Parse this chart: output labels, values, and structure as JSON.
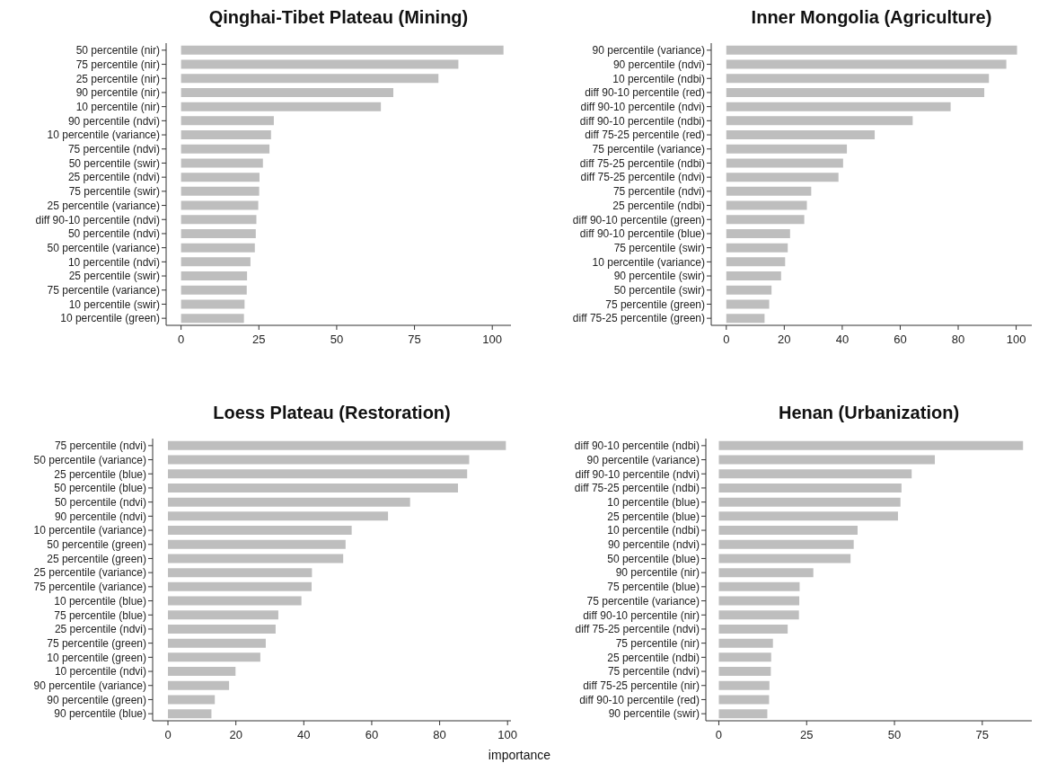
{
  "chart_data": [
    {
      "type": "bar",
      "orientation": "horizontal",
      "title": "Qinghai-Tibet Plateau (Mining)",
      "color": "#bebebe",
      "xlim": [
        -4.8,
        106
      ],
      "xticks": [
        0,
        25,
        50,
        75,
        100
      ],
      "categories": [
        "50 percentile (nir)",
        "75 percentile (nir)",
        "25 percentile (nir)",
        "90 percentile (nir)",
        "10 percentile (nir)",
        "90 percentile (ndvi)",
        "10 percentile (variance)",
        "75 percentile (ndvi)",
        "50 percentile (swir)",
        "25 percentile (ndvi)",
        "75 percentile (swir)",
        "25 percentile (variance)",
        "diff 90-10 percentile (ndvi)",
        "50 percentile (ndvi)",
        "50 percentile (variance)",
        "10 percentile (ndvi)",
        "25 percentile (swir)",
        "75 percentile (variance)",
        "10 percentile (swir)",
        "10 percentile (green)"
      ],
      "values": [
        103.6,
        89.1,
        82.7,
        68.2,
        64.2,
        29.8,
        28.9,
        28.4,
        26.3,
        25.2,
        25.1,
        24.8,
        24.2,
        24.0,
        23.7,
        22.3,
        21.2,
        21.1,
        20.4,
        20.2
      ]
    },
    {
      "type": "bar",
      "orientation": "horizontal",
      "title": "Inner Mongolia (Agriculture)",
      "color": "#bebebe",
      "xlim": [
        -5.2,
        105.4
      ],
      "xticks": [
        0,
        20,
        40,
        60,
        80,
        100
      ],
      "categories": [
        "90 percentile (variance)",
        "90 percentile (ndvi)",
        "10 percentile (ndbi)",
        "diff 90-10 percentile (red)",
        "diff 90-10 percentile (ndvi)",
        "diff 90-10 percentile (ndbi)",
        "diff 75-25 percentile (red)",
        "75 percentile (variance)",
        "diff 75-25 percentile (ndbi)",
        "diff 75-25 percentile (ndvi)",
        "75 percentile (ndvi)",
        "25 percentile (ndbi)",
        "diff 90-10 percentile (green)",
        "diff 90-10 percentile (blue)",
        "75 percentile (swir)",
        "10 percentile (variance)",
        "90 percentile (swir)",
        "50 percentile (swir)",
        "75 percentile (green)",
        "diff 75-25 percentile (green)"
      ],
      "values": [
        100.3,
        96.6,
        90.6,
        89.0,
        77.4,
        64.3,
        51.2,
        41.6,
        40.3,
        38.7,
        29.3,
        27.8,
        26.9,
        22.0,
        21.2,
        20.3,
        18.9,
        15.6,
        14.8,
        13.2
      ]
    },
    {
      "type": "bar",
      "orientation": "horizontal",
      "title": "Loess Plateau (Restoration)",
      "xlabel": "importance",
      "color": "#bebebe",
      "xlim": [
        -4.5,
        101
      ],
      "xticks": [
        0,
        20,
        40,
        60,
        80,
        100
      ],
      "categories": [
        "75 percentile (ndvi)",
        "50 percentile (variance)",
        "25 percentile (blue)",
        "50 percentile (blue)",
        "50 percentile (ndvi)",
        "90 percentile (ndvi)",
        "10 percentile (variance)",
        "50 percentile (green)",
        "25 percentile (green)",
        "25 percentile (variance)",
        "75 percentile (variance)",
        "10 percentile (blue)",
        "75 percentile (blue)",
        "25 percentile (ndvi)",
        "75 percentile (green)",
        "10 percentile (green)",
        "10 percentile (ndvi)",
        "90 percentile (variance)",
        "90 percentile (green)",
        "90 percentile (blue)"
      ],
      "values": [
        99.5,
        88.7,
        88.1,
        85.4,
        71.3,
        64.8,
        54.1,
        52.3,
        51.6,
        42.4,
        42.3,
        39.3,
        32.5,
        31.7,
        28.8,
        27.2,
        19.9,
        18.0,
        13.8,
        12.8
      ]
    },
    {
      "type": "bar",
      "orientation": "horizontal",
      "title": "Henan (Urbanization)",
      "color": "#bebebe",
      "xlim": [
        -3.7,
        89.1
      ],
      "xticks": [
        0,
        25,
        50,
        75
      ],
      "categories": [
        "diff 90-10 percentile (ndbi)",
        "90 percentile (variance)",
        "diff 90-10 percentile (ndvi)",
        "diff 75-25 percentile (ndbi)",
        "10 percentile (blue)",
        "25 percentile (blue)",
        "10 percentile (ndbi)",
        "90 percentile (ndvi)",
        "50 percentile (blue)",
        "90 percentile (nir)",
        "75 percentile (blue)",
        "75 percentile (variance)",
        "diff 90-10 percentile (nir)",
        "diff 75-25 percentile (ndvi)",
        "75 percentile (nir)",
        "25 percentile (ndbi)",
        "75 percentile (ndvi)",
        "diff 75-25 percentile (nir)",
        "diff 90-10 percentile (red)",
        "90 percentile (swir)"
      ],
      "values": [
        86.6,
        61.5,
        54.9,
        52.0,
        51.7,
        51.0,
        39.5,
        38.4,
        37.5,
        26.9,
        23.0,
        22.9,
        22.8,
        19.6,
        15.4,
        14.9,
        14.8,
        14.4,
        14.3,
        13.8
      ]
    }
  ]
}
